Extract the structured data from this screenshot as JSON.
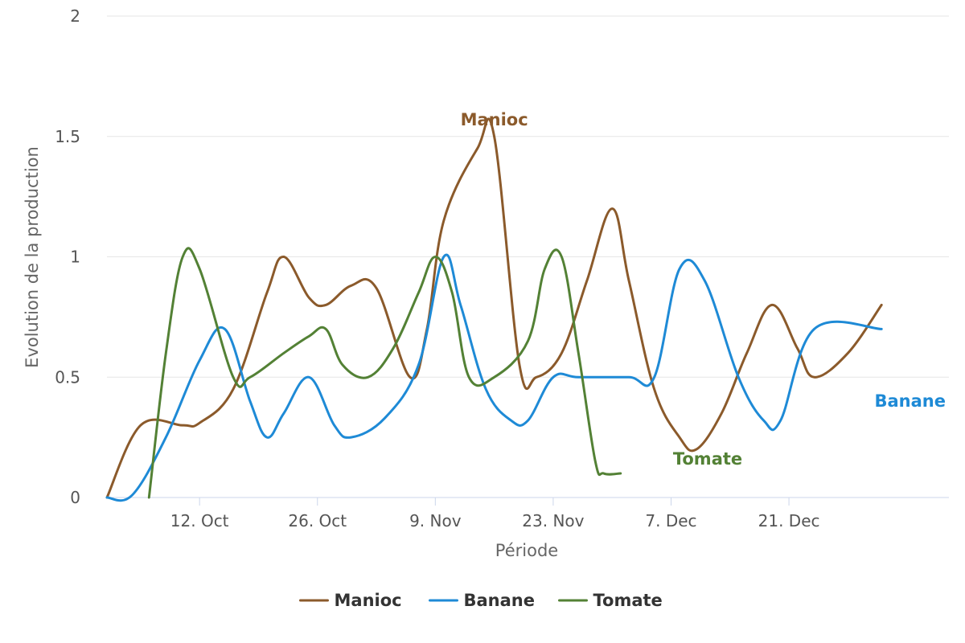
{
  "chart_data": {
    "type": "line",
    "title": "",
    "xlabel": "Période",
    "ylabel": "Evolution de la production",
    "ylim": [
      0,
      2
    ],
    "yticks": [
      "0",
      "0.5",
      "1",
      "1.5",
      "2"
    ],
    "xlim": [
      "2020-10-01",
      "2021-01-09"
    ],
    "xticks": [
      {
        "date": "2020-10-12",
        "label": "12. Oct"
      },
      {
        "date": "2020-10-26",
        "label": "26. Oct"
      },
      {
        "date": "2020-11-09",
        "label": "9. Nov"
      },
      {
        "date": "2020-11-23",
        "label": "23. Nov"
      },
      {
        "date": "2020-12-07",
        "label": "7. Dec"
      },
      {
        "date": "2020-12-21",
        "label": "21. Dec"
      }
    ],
    "grid": true,
    "legend": "bottom-center",
    "series": [
      {
        "name": "Manioc",
        "color": "#8B5A2B",
        "end_label": "Manioc",
        "points": [
          [
            "2020-10-01",
            0
          ],
          [
            "2020-10-05",
            0.3
          ],
          [
            "2020-10-10",
            0.3
          ],
          [
            "2020-10-12",
            0.31
          ],
          [
            "2020-10-16",
            0.45
          ],
          [
            "2020-10-20",
            0.85
          ],
          [
            "2020-10-22",
            1.0
          ],
          [
            "2020-10-25",
            0.83
          ],
          [
            "2020-10-27",
            0.8
          ],
          [
            "2020-10-30",
            0.88
          ],
          [
            "2020-11-02",
            0.87
          ],
          [
            "2020-11-06",
            0.5
          ],
          [
            "2020-11-08",
            0.7
          ],
          [
            "2020-11-10",
            1.15
          ],
          [
            "2020-11-14",
            1.45
          ],
          [
            "2020-11-16",
            1.5
          ],
          [
            "2020-11-19",
            0.55
          ],
          [
            "2020-11-21",
            0.5
          ],
          [
            "2020-11-24",
            0.6
          ],
          [
            "2020-11-27",
            0.9
          ],
          [
            "2020-11-30",
            1.2
          ],
          [
            "2020-12-02",
            0.9
          ],
          [
            "2020-12-05",
            0.45
          ],
          [
            "2020-12-08",
            0.25
          ],
          [
            "2020-12-10",
            0.2
          ],
          [
            "2020-12-13",
            0.35
          ],
          [
            "2020-12-16",
            0.6
          ],
          [
            "2020-12-19",
            0.8
          ],
          [
            "2020-12-22",
            0.62
          ],
          [
            "2020-12-24",
            0.5
          ],
          [
            "2020-12-28",
            0.6
          ],
          [
            "2021-01-01",
            0.8
          ]
        ]
      },
      {
        "name": "Banane",
        "color": "#1E8AD6",
        "end_label": "Banane",
        "points": [
          [
            "2020-10-01",
            0
          ],
          [
            "2020-10-04",
            0.01
          ],
          [
            "2020-10-08",
            0.25
          ],
          [
            "2020-10-12",
            0.57
          ],
          [
            "2020-10-15",
            0.7
          ],
          [
            "2020-10-18",
            0.4
          ],
          [
            "2020-10-20",
            0.25
          ],
          [
            "2020-10-22",
            0.35
          ],
          [
            "2020-10-25",
            0.5
          ],
          [
            "2020-10-28",
            0.3
          ],
          [
            "2020-10-30",
            0.25
          ],
          [
            "2020-11-03",
            0.33
          ],
          [
            "2020-11-07",
            0.55
          ],
          [
            "2020-11-10",
            1.0
          ],
          [
            "2020-11-12",
            0.8
          ],
          [
            "2020-11-15",
            0.45
          ],
          [
            "2020-11-18",
            0.32
          ],
          [
            "2020-11-20",
            0.32
          ],
          [
            "2020-11-23",
            0.5
          ],
          [
            "2020-11-26",
            0.5
          ],
          [
            "2020-12-02",
            0.5
          ],
          [
            "2020-12-05",
            0.5
          ],
          [
            "2020-12-08",
            0.95
          ],
          [
            "2020-12-11",
            0.9
          ],
          [
            "2020-12-15",
            0.5
          ],
          [
            "2020-12-18",
            0.32
          ],
          [
            "2020-12-20",
            0.32
          ],
          [
            "2020-12-24",
            0.7
          ],
          [
            "2021-01-01",
            0.7
          ]
        ]
      },
      {
        "name": "Tomate",
        "color": "#538135",
        "end_label": "Tomate",
        "points": [
          [
            "2020-10-06",
            0
          ],
          [
            "2020-10-08",
            0.6
          ],
          [
            "2020-10-10",
            1.0
          ],
          [
            "2020-10-12",
            0.95
          ],
          [
            "2020-10-16",
            0.5
          ],
          [
            "2020-10-18",
            0.5
          ],
          [
            "2020-10-22",
            0.6
          ],
          [
            "2020-10-25",
            0.67
          ],
          [
            "2020-10-27",
            0.7
          ],
          [
            "2020-10-29",
            0.55
          ],
          [
            "2020-11-01",
            0.5
          ],
          [
            "2020-11-04",
            0.62
          ],
          [
            "2020-11-07",
            0.85
          ],
          [
            "2020-11-09",
            1.0
          ],
          [
            "2020-11-11",
            0.85
          ],
          [
            "2020-11-13",
            0.5
          ],
          [
            "2020-11-16",
            0.5
          ],
          [
            "2020-11-20",
            0.65
          ],
          [
            "2020-11-22",
            0.95
          ],
          [
            "2020-11-24",
            1.0
          ],
          [
            "2020-11-26",
            0.6
          ],
          [
            "2020-11-28",
            0.15
          ],
          [
            "2020-11-29",
            0.1
          ],
          [
            "2020-12-01",
            0.1
          ]
        ]
      }
    ]
  }
}
